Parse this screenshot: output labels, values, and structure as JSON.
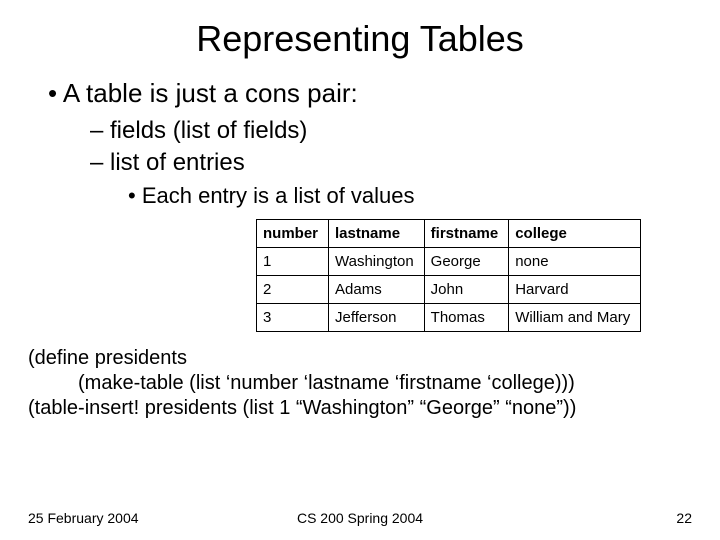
{
  "title": "Representing Tables",
  "bullets": {
    "l1": "A table is just a cons pair:",
    "l2a": "fields (list of fields)",
    "l2b": "list of entries",
    "l3": "Each entry is a list of values"
  },
  "table": {
    "headers": [
      "number",
      "lastname",
      "firstname",
      "college"
    ],
    "rows": [
      [
        "1",
        "Washington",
        "George",
        "none"
      ],
      [
        "2",
        "Adams",
        "John",
        "Harvard"
      ],
      [
        "3",
        "Jefferson",
        "Thomas",
        "William and Mary"
      ]
    ]
  },
  "code": {
    "line1": "(define presidents",
    "line2": "(make-table (list ‘number ‘lastname ‘firstname ‘college)))",
    "line3": "(table-insert! presidents (list 1 “Washington” “George” “none”))"
  },
  "footer": {
    "date": "25 February 2004",
    "course": "CS 200 Spring 2004",
    "page": "22"
  }
}
